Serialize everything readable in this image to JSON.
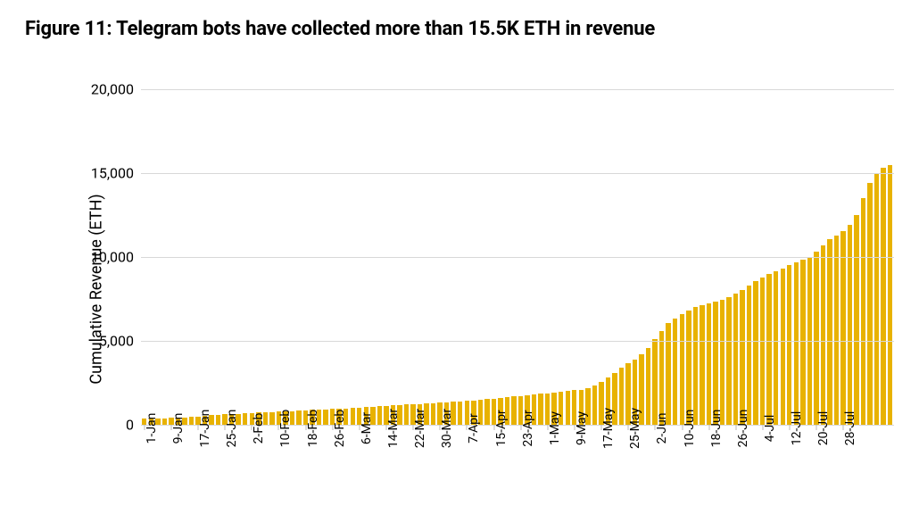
{
  "title": "Figure 11: Telegram bots have collected more than 15.5K ETH in revenue",
  "chart": {
    "type": "bar",
    "ylabel": "Cumulative Revenue (ETH)",
    "ylim": [
      0,
      20000
    ],
    "yticks": [
      0,
      5000,
      10000,
      15000,
      20000
    ],
    "ytick_labels": [
      "0",
      "5,000",
      "10,000",
      "15,000",
      "20,000"
    ],
    "bar_color": "#e8b200",
    "grid_color": "#d8d8d8",
    "background_color": "#ffffff",
    "title_fontsize": 22,
    "title_fontweight": 700,
    "ylabel_fontsize": 18,
    "ytick_fontsize": 16,
    "xtick_fontsize": 14,
    "xtick_rotation": -90,
    "bar_width_ratio": 0.72,
    "xlabels": [
      "1-Jan",
      "9-Jan",
      "17-Jan",
      "25-Jan",
      "2-Feb",
      "10-Feb",
      "18-Feb",
      "26-Feb",
      "6-Mar",
      "14-Mar",
      "22-Mar",
      "30-Mar",
      "7-Apr",
      "15-Apr",
      "23-Apr",
      "1-May",
      "9-May",
      "17-May",
      "25-May",
      "2-Jun",
      "10-Jun",
      "18-Jun",
      "26-Jun",
      "4-Jul",
      "12-Jul",
      "20-Jul",
      "28-Jul"
    ],
    "xlabel_every": 4,
    "values": [
      350,
      360,
      370,
      380,
      400,
      420,
      440,
      460,
      500,
      530,
      560,
      590,
      620,
      640,
      660,
      680,
      700,
      720,
      740,
      760,
      780,
      800,
      820,
      840,
      860,
      880,
      900,
      920,
      940,
      960,
      980,
      1000,
      1025,
      1050,
      1075,
      1100,
      1125,
      1150,
      1175,
      1200,
      1225,
      1250,
      1275,
      1300,
      1325,
      1350,
      1375,
      1400,
      1425,
      1450,
      1480,
      1520,
      1560,
      1600,
      1640,
      1680,
      1720,
      1760,
      1800,
      1840,
      1880,
      1920,
      1960,
      2000,
      2050,
      2100,
      2200,
      2350,
      2550,
      2800,
      3100,
      3400,
      3650,
      3900,
      4200,
      4600,
      5100,
      5600,
      6050,
      6350,
      6600,
      6800,
      7000,
      7150,
      7250,
      7350,
      7450,
      7600,
      7800,
      8050,
      8300,
      8550,
      8800,
      9000,
      9150,
      9300,
      9500,
      9700,
      9850,
      10000,
      10300,
      10700,
      11050,
      11300,
      11550,
      11900,
      12500,
      13500,
      14400,
      15000,
      15300,
      15500
    ]
  }
}
